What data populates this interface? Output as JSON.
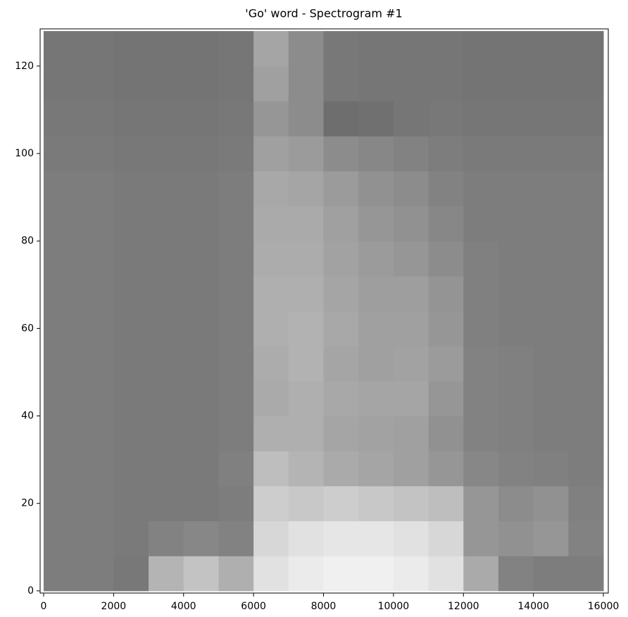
{
  "chart_data": {
    "type": "heatmap",
    "title": "'Go' word - Spectrogram #1",
    "xbins": [
      0,
      1000,
      2000,
      3000,
      4000,
      5000,
      6000,
      7000,
      8000,
      9000,
      10000,
      11000,
      12000,
      13000,
      14000,
      15000,
      16000
    ],
    "ybins": [
      0,
      8,
      16,
      24,
      32,
      40,
      48,
      56,
      64,
      72,
      80,
      88,
      96,
      104,
      112,
      120,
      128
    ],
    "values": [
      [
        125,
        125,
        120,
        180,
        195,
        175,
        225,
        235,
        240,
        240,
        235,
        225,
        170,
        130,
        125,
        125
      ],
      [
        125,
        125,
        122,
        130,
        135,
        130,
        215,
        225,
        230,
        230,
        225,
        215,
        150,
        145,
        150,
        130
      ],
      [
        125,
        125,
        122,
        122,
        122,
        125,
        205,
        200,
        205,
        200,
        195,
        190,
        150,
        140,
        145,
        128
      ],
      [
        125,
        125,
        122,
        122,
        122,
        128,
        190,
        180,
        170,
        165,
        160,
        150,
        135,
        130,
        128,
        125
      ],
      [
        125,
        125,
        122,
        122,
        122,
        125,
        175,
        175,
        165,
        162,
        160,
        145,
        130,
        128,
        125,
        125
      ],
      [
        125,
        125,
        122,
        122,
        122,
        125,
        170,
        175,
        168,
        165,
        165,
        150,
        130,
        128,
        125,
        125
      ],
      [
        125,
        125,
        122,
        122,
        122,
        125,
        172,
        178,
        165,
        160,
        162,
        155,
        130,
        128,
        125,
        125
      ],
      [
        125,
        125,
        122,
        122,
        122,
        125,
        175,
        178,
        168,
        160,
        160,
        150,
        128,
        125,
        125,
        125
      ],
      [
        125,
        125,
        122,
        122,
        122,
        125,
        175,
        175,
        165,
        158,
        158,
        148,
        128,
        125,
        125,
        125
      ],
      [
        125,
        125,
        122,
        122,
        122,
        125,
        172,
        172,
        162,
        155,
        150,
        140,
        128,
        125,
        125,
        125
      ],
      [
        125,
        125,
        122,
        122,
        122,
        125,
        170,
        170,
        160,
        150,
        145,
        135,
        125,
        125,
        125,
        125
      ],
      [
        125,
        125,
        122,
        122,
        122,
        125,
        168,
        165,
        155,
        145,
        140,
        130,
        125,
        125,
        125,
        125
      ],
      [
        122,
        122,
        120,
        120,
        120,
        122,
        160,
        155,
        140,
        135,
        130,
        125,
        122,
        122,
        122,
        122
      ],
      [
        120,
        120,
        118,
        118,
        118,
        120,
        150,
        140,
        110,
        112,
        118,
        120,
        118,
        118,
        118,
        118
      ],
      [
        118,
        118,
        116,
        116,
        116,
        118,
        160,
        140,
        120,
        118,
        118,
        118,
        116,
        116,
        116,
        116
      ],
      [
        118,
        118,
        116,
        116,
        116,
        118,
        165,
        140,
        120,
        118,
        118,
        118,
        116,
        116,
        116,
        116
      ]
    ],
    "cmap": "gray",
    "zlim": [
      0,
      255
    ],
    "xlim": [
      -100,
      16140
    ],
    "ylim": [
      -0.5,
      128.5
    ],
    "xticks": [
      0,
      2000,
      4000,
      6000,
      8000,
      10000,
      12000,
      14000,
      16000
    ],
    "yticks": [
      0,
      20,
      40,
      60,
      80,
      100,
      120
    ]
  }
}
